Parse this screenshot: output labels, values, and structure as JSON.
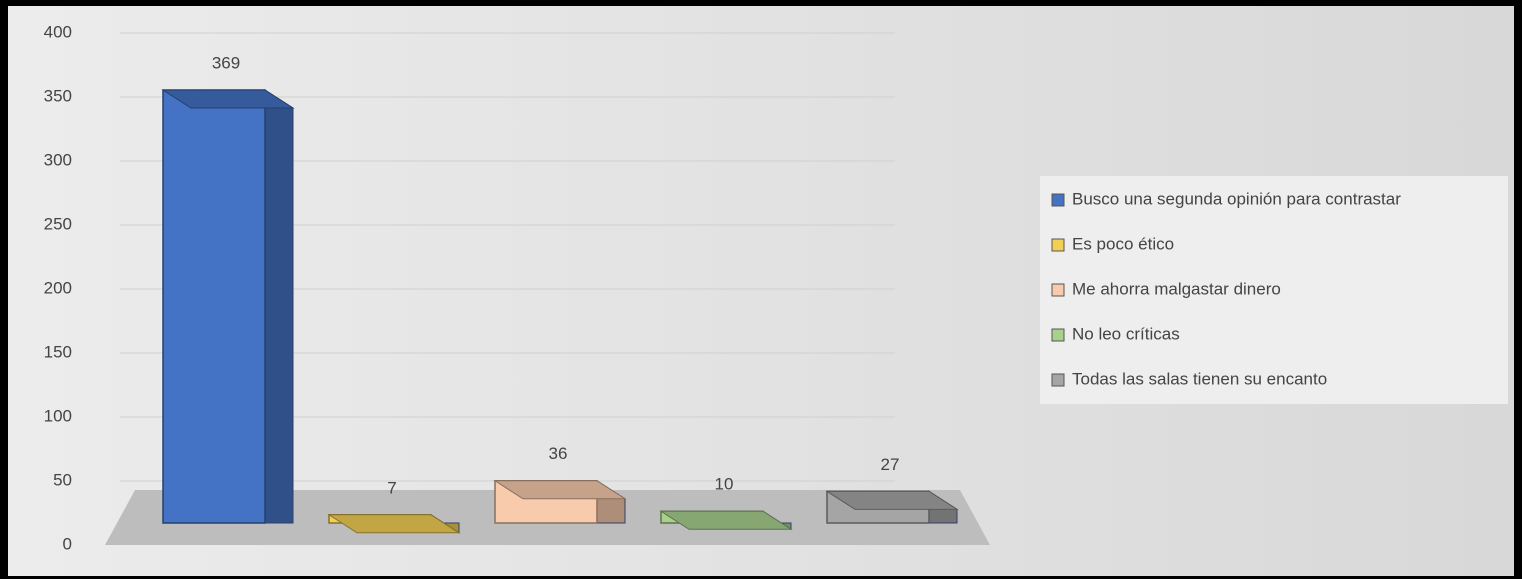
{
  "chart_data": {
    "type": "bar3d",
    "series": [
      {
        "name": "Busco una segunda opinión para contrastar",
        "color": "#4472c4",
        "values": [
          369
        ]
      },
      {
        "name": "Es poco ético",
        "color": "#f2cf55",
        "values": [
          7
        ]
      },
      {
        "name": "Me ahorra malgastar dinero",
        "color": "#f8cbad",
        "values": [
          36
        ]
      },
      {
        "name": "No leo críticas",
        "color": "#a9d18e",
        "values": [
          10
        ]
      },
      {
        "name": "Todas las salas tienen su encanto",
        "color": "#a5a5a5",
        "values": [
          27
        ]
      }
    ],
    "ylim": [
      0,
      400
    ],
    "yticks": [
      0,
      50,
      100,
      150,
      200,
      250,
      300,
      350,
      400
    ],
    "grid": true,
    "legend": "right"
  }
}
